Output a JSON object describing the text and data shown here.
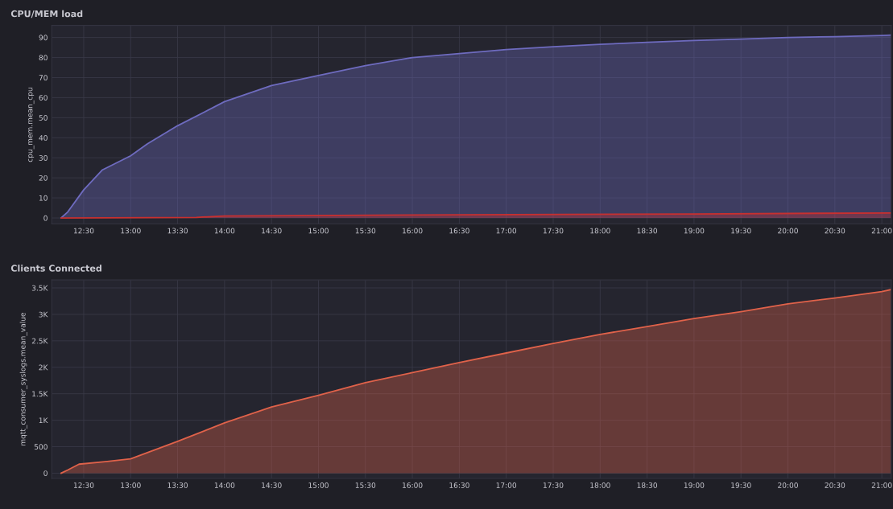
{
  "chart_data": [
    {
      "type": "area",
      "title": "CPU/MEM load",
      "ylabel": "cpu_mem.mean_cpu",
      "xlim": [
        12.16,
        21.1
      ],
      "ylim": [
        -3,
        96
      ],
      "yticks": [
        0,
        10,
        20,
        30,
        40,
        50,
        60,
        70,
        80,
        90
      ],
      "xticks": [
        {
          "value": 12.5,
          "label": "12:30"
        },
        {
          "value": 13,
          "label": "13:00"
        },
        {
          "value": 13.5,
          "label": "13:30"
        },
        {
          "value": 14,
          "label": "14:00"
        },
        {
          "value": 14.5,
          "label": "14:30"
        },
        {
          "value": 15,
          "label": "15:00"
        },
        {
          "value": 15.5,
          "label": "15:30"
        },
        {
          "value": 16,
          "label": "16:00"
        },
        {
          "value": 16.5,
          "label": "16:30"
        },
        {
          "value": 17,
          "label": "17:00"
        },
        {
          "value": 17.5,
          "label": "17:30"
        },
        {
          "value": 18,
          "label": "18:00"
        },
        {
          "value": 18.5,
          "label": "18:30"
        },
        {
          "value": 19,
          "label": "19:00"
        },
        {
          "value": 19.5,
          "label": "19:30"
        },
        {
          "value": 20,
          "label": "20:00"
        },
        {
          "value": 20.5,
          "label": "20:30"
        },
        {
          "value": 21,
          "label": "21:00"
        }
      ],
      "grid": true,
      "legend": false,
      "series": [
        {
          "color": "#6e6bbf",
          "x": [
            12.26,
            12.33,
            12.5,
            12.7,
            13,
            13.18,
            13.5,
            14,
            14.5,
            15,
            15.5,
            16,
            16.5,
            17,
            17.5,
            18,
            18.5,
            19,
            19.5,
            20,
            20.5,
            21,
            21.1
          ],
          "values": [
            0,
            3,
            14,
            24,
            31,
            37,
            46,
            58,
            66,
            71,
            76,
            80,
            82,
            84,
            85.4,
            86.6,
            87.6,
            88.5,
            89.2,
            90,
            90.4,
            91,
            91.2
          ]
        },
        {
          "color": "#c8302f",
          "x": [
            12.26,
            13.7,
            14,
            16,
            19,
            21.1
          ],
          "values": [
            0,
            0.3,
            1,
            1.5,
            2,
            2.5
          ]
        }
      ]
    },
    {
      "type": "area",
      "title": "Clients Connected",
      "ylabel": "mqtt_consumer_syslogs.mean_value",
      "xlim": [
        12.16,
        21.1
      ],
      "ylim": [
        -100,
        3650
      ],
      "yticks": [
        0,
        500,
        {
          "value": 1000,
          "label": "1K"
        },
        {
          "value": 1500,
          "label": "1.5K"
        },
        {
          "value": 2000,
          "label": "2K"
        },
        {
          "value": 2500,
          "label": "2.5K"
        },
        {
          "value": 3000,
          "label": "3K"
        },
        {
          "value": 3500,
          "label": "3.5K"
        }
      ],
      "xticks": [
        {
          "value": 12.5,
          "label": "12:30"
        },
        {
          "value": 13,
          "label": "13:00"
        },
        {
          "value": 13.5,
          "label": "13:30"
        },
        {
          "value": 14,
          "label": "14:00"
        },
        {
          "value": 14.5,
          "label": "14:30"
        },
        {
          "value": 15,
          "label": "15:00"
        },
        {
          "value": 15.5,
          "label": "15:30"
        },
        {
          "value": 16,
          "label": "16:00"
        },
        {
          "value": 16.5,
          "label": "16:30"
        },
        {
          "value": 17,
          "label": "17:00"
        },
        {
          "value": 17.5,
          "label": "17:30"
        },
        {
          "value": 18,
          "label": "18:00"
        },
        {
          "value": 18.5,
          "label": "18:30"
        },
        {
          "value": 19,
          "label": "19:00"
        },
        {
          "value": 19.5,
          "label": "19:30"
        },
        {
          "value": 20,
          "label": "20:00"
        },
        {
          "value": 20.5,
          "label": "20:30"
        },
        {
          "value": 21,
          "label": "21:00"
        }
      ],
      "grid": true,
      "legend": false,
      "series": [
        {
          "color": "#e0624a",
          "x": [
            12.26,
            12.33,
            12.45,
            12.75,
            13,
            13.5,
            14,
            14.5,
            15,
            15.5,
            16,
            16.5,
            17,
            17.5,
            18,
            18.5,
            19,
            19.5,
            20,
            20.5,
            21,
            21.1
          ],
          "values": [
            0,
            60,
            170,
            220,
            270,
            600,
            950,
            1250,
            1470,
            1710,
            1900,
            2090,
            2270,
            2450,
            2620,
            2770,
            2920,
            3050,
            3200,
            3310,
            3430,
            3470
          ]
        }
      ]
    }
  ]
}
